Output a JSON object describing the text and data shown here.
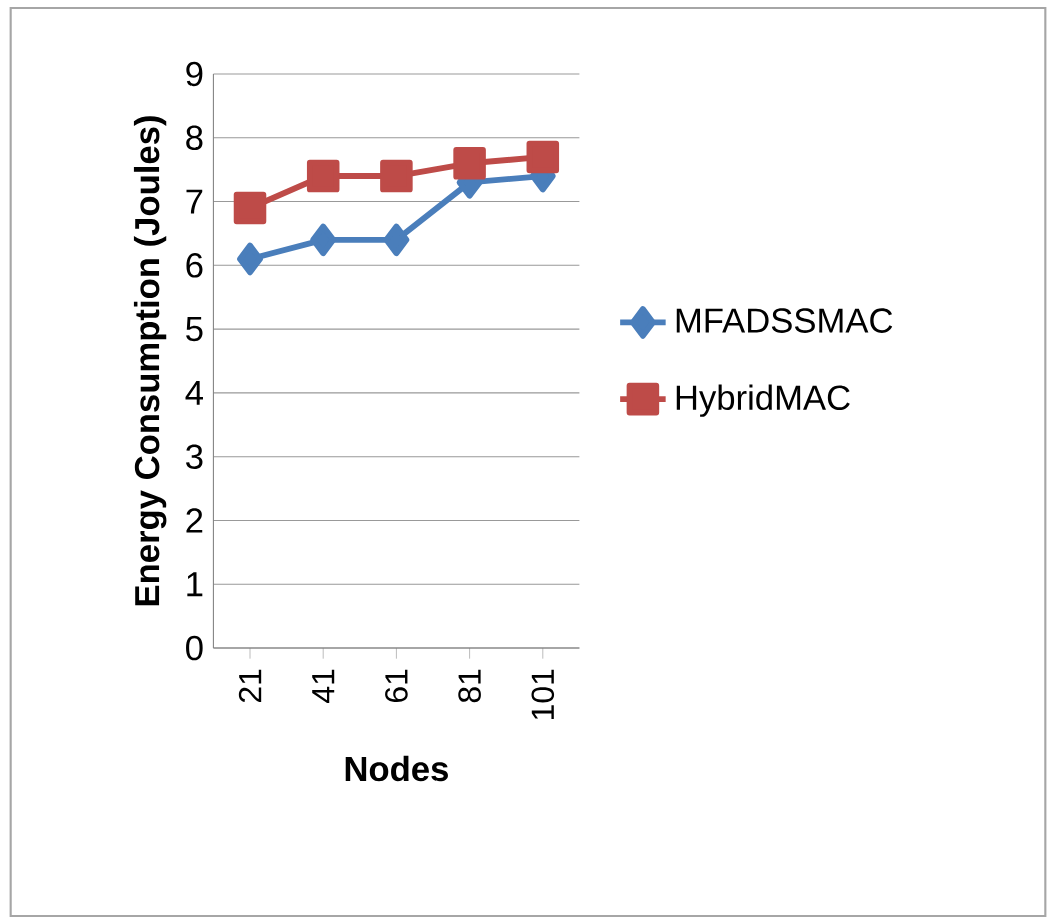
{
  "chart_data": {
    "type": "line",
    "xlabel": "Nodes",
    "ylabel": "Energy Consumption (Joules)",
    "categories": [
      "21",
      "41",
      "61",
      "81",
      "101"
    ],
    "series": [
      {
        "name": "MFADSSMAC",
        "color": "#4a7ebb",
        "marker": "diamond",
        "values": [
          6.1,
          6.4,
          6.4,
          7.3,
          7.4
        ]
      },
      {
        "name": "HybridMAC",
        "color": "#be4b48",
        "marker": "square",
        "values": [
          6.9,
          7.4,
          7.4,
          7.6,
          7.7
        ]
      }
    ],
    "ylim": [
      0,
      9
    ],
    "yticks": [
      0,
      1,
      2,
      3,
      4,
      5,
      6,
      7,
      8,
      9
    ],
    "grid": "y",
    "legend": "right",
    "line_style": "solid"
  }
}
